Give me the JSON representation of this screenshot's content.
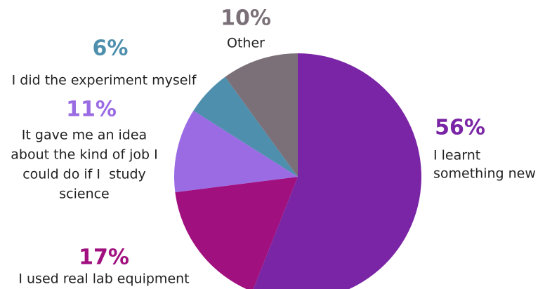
{
  "chart_data": {
    "type": "pie",
    "categories": [
      [
        "I learnt",
        "something new"
      ],
      [
        "I used real lab equipment"
      ],
      [
        "It gave me an idea",
        "about the kind of job I",
        "could do if I  study",
        "science"
      ],
      [
        "I did the experiment myself"
      ],
      [
        "Other"
      ]
    ],
    "values": [
      56,
      17,
      11,
      6,
      10
    ],
    "value_labels": [
      "56%",
      "17%",
      "11%",
      "6%",
      "10%"
    ],
    "colors": [
      "#7a25a5",
      "#a0107f",
      "#9a6be3",
      "#4e8fad",
      "#7b7078"
    ]
  }
}
